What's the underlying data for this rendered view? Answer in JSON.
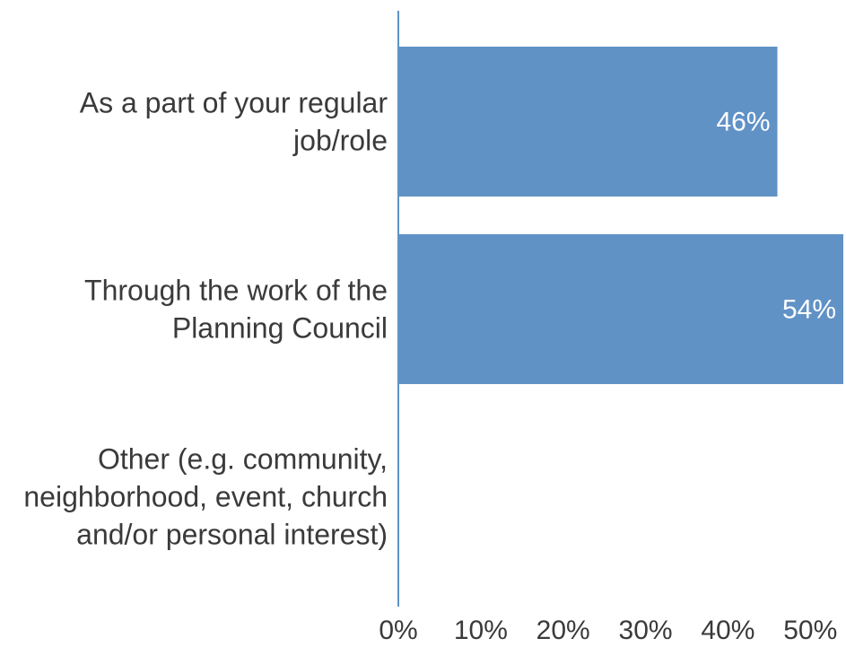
{
  "chart_data": {
    "type": "bar",
    "orientation": "horizontal",
    "categories": [
      [
        "As a part of your regular",
        "job/role"
      ],
      [
        "Through the work of the",
        "Planning Council"
      ],
      [
        "Other (e.g. community,",
        "neighborhood, event, church",
        "and/or personal interest)"
      ]
    ],
    "values": [
      46,
      54,
      0
    ],
    "data_labels": [
      "46%",
      "54%",
      ""
    ],
    "xlim": [
      0,
      54
    ],
    "x_ticks": [
      0,
      10,
      20,
      30,
      40,
      50
    ],
    "x_tick_labels": [
      "0%",
      "10%",
      "20%",
      "30%",
      "40%",
      "50%"
    ],
    "title": "",
    "xlabel": "",
    "ylabel": "",
    "grid": false,
    "colors": {
      "bar": "#6092c6",
      "axis": "#6092c6",
      "text": "#3a3a3a",
      "data_label": "#ffffff"
    }
  }
}
